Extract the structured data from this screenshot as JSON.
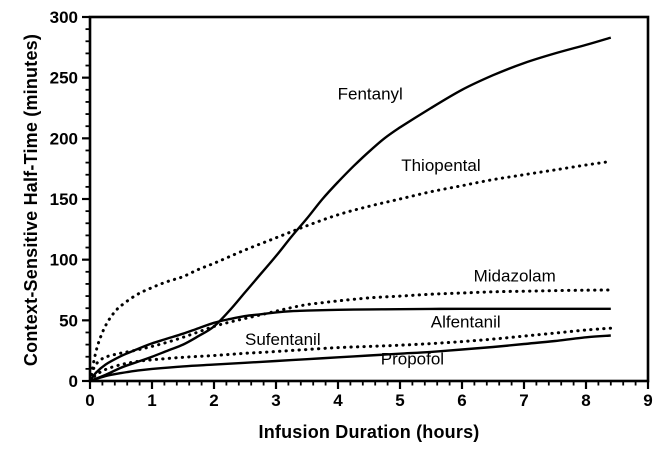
{
  "chart_data": {
    "type": "line",
    "title": "",
    "xlabel": "Infusion Duration (hours)",
    "ylabel": "Context-Sensitive Half-Time (minutes)",
    "xlim": [
      0,
      9
    ],
    "ylim": [
      0,
      300
    ],
    "x_major_ticks": [
      0,
      1,
      2,
      3,
      4,
      5,
      6,
      7,
      8,
      9
    ],
    "x_minor_step": 0.2,
    "y_major_ticks": [
      0,
      50,
      100,
      150,
      200,
      250,
      300
    ],
    "y_minor_step": 10,
    "grid": false,
    "legend_position": "none",
    "background_color": "#ffffff",
    "ink_color": "#000000",
    "series": [
      {
        "name": "Fentanyl",
        "line_style": "solid",
        "label_pos": {
          "x": 4.52,
          "y": 237
        },
        "points": [
          [
            0,
            0
          ],
          [
            0.25,
            5
          ],
          [
            0.5,
            11
          ],
          [
            0.75,
            15.5
          ],
          [
            1,
            20
          ],
          [
            1.25,
            25
          ],
          [
            1.5,
            30
          ],
          [
            1.75,
            37
          ],
          [
            2,
            45
          ],
          [
            2.25,
            58
          ],
          [
            2.5,
            73
          ],
          [
            2.75,
            88
          ],
          [
            3,
            103
          ],
          [
            3.25,
            119
          ],
          [
            3.5,
            134
          ],
          [
            3.75,
            150
          ],
          [
            4,
            164
          ],
          [
            4.25,
            177
          ],
          [
            4.5,
            189
          ],
          [
            4.75,
            200
          ],
          [
            5,
            209
          ],
          [
            5.5,
            225
          ],
          [
            6,
            240
          ],
          [
            6.5,
            252
          ],
          [
            7,
            262
          ],
          [
            7.5,
            270
          ],
          [
            8,
            277
          ],
          [
            8.4,
            283
          ]
        ]
      },
      {
        "name": "Thiopental",
        "line_style": "dotted",
        "label_pos": {
          "x": 5.66,
          "y": 178
        },
        "points": [
          [
            0,
            0
          ],
          [
            0.1,
            25
          ],
          [
            0.2,
            40
          ],
          [
            0.3,
            50
          ],
          [
            0.4,
            57
          ],
          [
            0.5,
            62
          ],
          [
            0.75,
            71
          ],
          [
            1,
            77
          ],
          [
            1.25,
            82
          ],
          [
            1.5,
            86
          ],
          [
            1.75,
            92
          ],
          [
            2,
            97
          ],
          [
            2.5,
            108
          ],
          [
            3,
            118
          ],
          [
            3.5,
            128
          ],
          [
            4,
            137
          ],
          [
            4.5,
            144
          ],
          [
            5,
            150
          ],
          [
            5.5,
            156
          ],
          [
            6,
            161
          ],
          [
            6.5,
            166
          ],
          [
            7,
            170
          ],
          [
            7.5,
            174
          ],
          [
            8,
            178
          ],
          [
            8.4,
            181
          ]
        ]
      },
      {
        "name": "Midazolam",
        "line_style": "dotted",
        "label_pos": {
          "x": 6.85,
          "y": 87
        },
        "points": [
          [
            0,
            0
          ],
          [
            0.05,
            9
          ],
          [
            0.1,
            14
          ],
          [
            0.2,
            18.5
          ],
          [
            0.3,
            20.5
          ],
          [
            0.5,
            23
          ],
          [
            0.75,
            25.5
          ],
          [
            1,
            28.5
          ],
          [
            1.25,
            32
          ],
          [
            1.5,
            36
          ],
          [
            1.75,
            40.5
          ],
          [
            2,
            45
          ],
          [
            2.25,
            48.5
          ],
          [
            2.5,
            51.5
          ],
          [
            2.75,
            54.5
          ],
          [
            3,
            57.5
          ],
          [
            3.25,
            60.5
          ],
          [
            3.5,
            63
          ],
          [
            3.75,
            64.5
          ],
          [
            4,
            66
          ],
          [
            4.5,
            68.5
          ],
          [
            5,
            70
          ],
          [
            5.5,
            71.5
          ],
          [
            6,
            72.5
          ],
          [
            6.5,
            73.5
          ],
          [
            7,
            74
          ],
          [
            7.5,
            74.5
          ],
          [
            8,
            74.8
          ],
          [
            8.4,
            75
          ]
        ]
      },
      {
        "name": "Alfentanil",
        "line_style": "solid",
        "label_pos": {
          "x": 6.06,
          "y": 49
        },
        "points": [
          [
            0,
            0
          ],
          [
            0.1,
            7
          ],
          [
            0.25,
            13.5
          ],
          [
            0.5,
            20.5
          ],
          [
            0.75,
            26
          ],
          [
            1,
            31
          ],
          [
            1.25,
            35
          ],
          [
            1.5,
            39
          ],
          [
            1.75,
            43.5
          ],
          [
            2,
            48
          ],
          [
            2.25,
            51
          ],
          [
            2.5,
            53.5
          ],
          [
            2.75,
            55
          ],
          [
            3,
            56.5
          ],
          [
            3.25,
            57.5
          ],
          [
            3.5,
            58
          ],
          [
            4,
            58.7
          ],
          [
            4.5,
            59
          ],
          [
            5,
            59.2
          ],
          [
            5.5,
            59.4
          ],
          [
            6,
            59.5
          ],
          [
            7,
            59.5
          ],
          [
            8,
            59.5
          ],
          [
            8.4,
            59.5
          ]
        ]
      },
      {
        "name": "Sufentanil",
        "line_style": "dotted",
        "label_pos": {
          "x": 3.11,
          "y": 34.5
        },
        "points": [
          [
            0,
            0
          ],
          [
            0.1,
            5
          ],
          [
            0.25,
            9.5
          ],
          [
            0.5,
            13.5
          ],
          [
            0.75,
            16
          ],
          [
            1,
            17.5
          ],
          [
            1.5,
            19.5
          ],
          [
            2,
            21
          ],
          [
            2.5,
            22.8
          ],
          [
            3,
            24.3
          ],
          [
            3.5,
            26
          ],
          [
            4,
            27.5
          ],
          [
            4.5,
            28.5
          ],
          [
            5,
            29.5
          ],
          [
            5.5,
            30.8
          ],
          [
            6,
            32.5
          ],
          [
            6.5,
            34.5
          ],
          [
            7,
            37
          ],
          [
            7.5,
            39.5
          ],
          [
            8,
            42
          ],
          [
            8.4,
            43.5
          ]
        ]
      },
      {
        "name": "Propofol",
        "line_style": "solid",
        "label_pos": {
          "x": 5.2,
          "y": 18.5
        },
        "points": [
          [
            0,
            0
          ],
          [
            0.25,
            4
          ],
          [
            0.5,
            6.5
          ],
          [
            0.75,
            8.5
          ],
          [
            1,
            10
          ],
          [
            1.5,
            12
          ],
          [
            2,
            13.5
          ],
          [
            2.5,
            15
          ],
          [
            3,
            16.5
          ],
          [
            3.5,
            18
          ],
          [
            4,
            19.5
          ],
          [
            4.5,
            21
          ],
          [
            5,
            22.5
          ],
          [
            5.5,
            24
          ],
          [
            6,
            26
          ],
          [
            6.5,
            28
          ],
          [
            7,
            30.5
          ],
          [
            7.5,
            33
          ],
          [
            8,
            36
          ],
          [
            8.4,
            37.5
          ]
        ]
      }
    ]
  }
}
